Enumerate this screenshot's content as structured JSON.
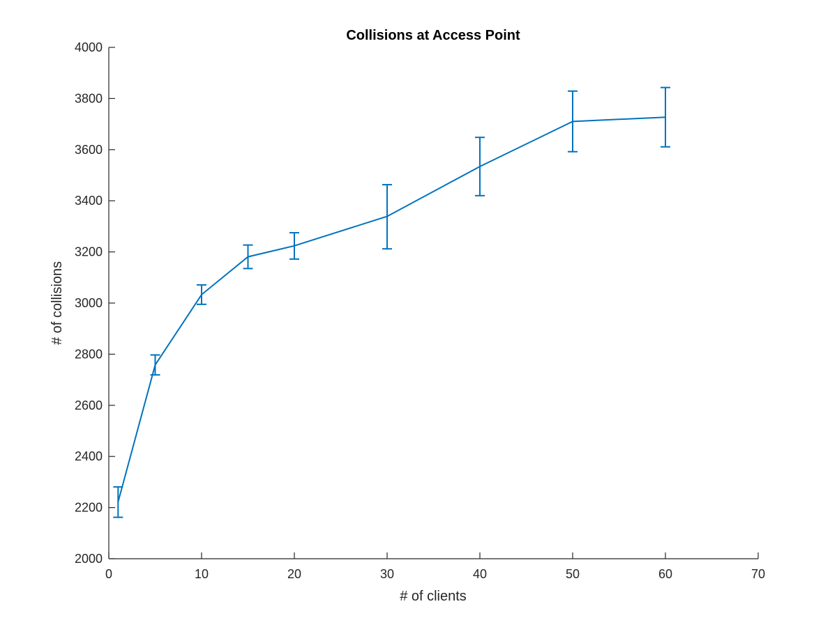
{
  "chart_data": {
    "type": "line",
    "title": "Collisions at Access Point",
    "xlabel": "# of clients",
    "ylabel": "# of collisions",
    "xlim": [
      0,
      70
    ],
    "ylim": [
      2000,
      4000
    ],
    "xticks": [
      0,
      10,
      20,
      30,
      40,
      50,
      60,
      70
    ],
    "yticks": [
      2000,
      2200,
      2400,
      2600,
      2800,
      3000,
      3200,
      3400,
      3600,
      3800,
      4000
    ],
    "grid": false,
    "legend": "none",
    "line_color": "#0072BD",
    "series": [
      {
        "x": [
          1,
          5,
          10,
          15,
          20,
          30,
          40,
          50,
          60
        ],
        "y": [
          2222,
          2758,
          3033,
          3181,
          3224,
          3339,
          3534,
          3710,
          3727
        ],
        "error_lower": [
          2162,
          2719,
          2995,
          3135,
          3172,
          3212,
          3420,
          3592,
          3611
        ],
        "error_upper": [
          2281,
          2797,
          3071,
          3227,
          3275,
          3463,
          3648,
          3829,
          3843
        ]
      }
    ]
  }
}
